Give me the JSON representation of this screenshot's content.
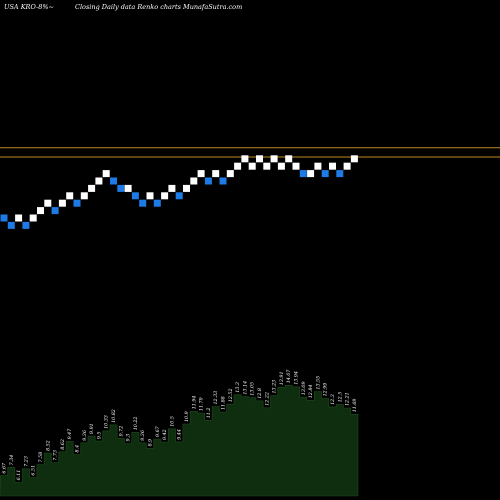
{
  "header": {
    "ticker_label": "USA KRO-8%~",
    "title": "Closing Daily data  Renko  charts MunafaSutra.com"
  },
  "colors": {
    "background": "#000000",
    "brick_up": "#ffffff",
    "brick_down": "#1e7be6",
    "level_line": "#c08a1e",
    "volume_fill": "#0f2e0f",
    "volume_edge": "#1c4a1c",
    "volume_label": "#ffffff"
  },
  "chart_data": [
    {
      "type": "renko",
      "x_axis": "brick index",
      "y_axis": "price level (brick steps)",
      "grid": false,
      "bricks": [
        {
          "i": 0,
          "level": 4,
          "dir": "down"
        },
        {
          "i": 1,
          "level": 3,
          "dir": "down"
        },
        {
          "i": 2,
          "level": 4,
          "dir": "up"
        },
        {
          "i": 3,
          "level": 3,
          "dir": "down"
        },
        {
          "i": 4,
          "level": 4,
          "dir": "up"
        },
        {
          "i": 5,
          "level": 5,
          "dir": "up"
        },
        {
          "i": 6,
          "level": 6,
          "dir": "up"
        },
        {
          "i": 7,
          "level": 5,
          "dir": "down"
        },
        {
          "i": 8,
          "level": 6,
          "dir": "up"
        },
        {
          "i": 9,
          "level": 7,
          "dir": "up"
        },
        {
          "i": 10,
          "level": 6,
          "dir": "down"
        },
        {
          "i": 11,
          "level": 7,
          "dir": "up"
        },
        {
          "i": 12,
          "level": 8,
          "dir": "up"
        },
        {
          "i": 13,
          "level": 9,
          "dir": "up"
        },
        {
          "i": 14,
          "level": 10,
          "dir": "up"
        },
        {
          "i": 15,
          "level": 9,
          "dir": "down"
        },
        {
          "i": 16,
          "level": 8,
          "dir": "down"
        },
        {
          "i": 17,
          "level": 8,
          "dir": "up"
        },
        {
          "i": 18,
          "level": 7,
          "dir": "down"
        },
        {
          "i": 19,
          "level": 6,
          "dir": "down"
        },
        {
          "i": 20,
          "level": 7,
          "dir": "up"
        },
        {
          "i": 21,
          "level": 6,
          "dir": "down"
        },
        {
          "i": 22,
          "level": 7,
          "dir": "up"
        },
        {
          "i": 23,
          "level": 8,
          "dir": "up"
        },
        {
          "i": 24,
          "level": 7,
          "dir": "down"
        },
        {
          "i": 25,
          "level": 8,
          "dir": "up"
        },
        {
          "i": 26,
          "level": 9,
          "dir": "up"
        },
        {
          "i": 27,
          "level": 10,
          "dir": "up"
        },
        {
          "i": 28,
          "level": 9,
          "dir": "down"
        },
        {
          "i": 29,
          "level": 10,
          "dir": "up"
        },
        {
          "i": 30,
          "level": 9,
          "dir": "down"
        },
        {
          "i": 31,
          "level": 10,
          "dir": "up"
        },
        {
          "i": 32,
          "level": 11,
          "dir": "up"
        },
        {
          "i": 33,
          "level": 12,
          "dir": "up"
        },
        {
          "i": 34,
          "level": 11,
          "dir": "up"
        },
        {
          "i": 35,
          "level": 12,
          "dir": "up"
        },
        {
          "i": 36,
          "level": 11,
          "dir": "up"
        },
        {
          "i": 37,
          "level": 12,
          "dir": "up"
        },
        {
          "i": 38,
          "level": 11,
          "dir": "up"
        },
        {
          "i": 39,
          "level": 12,
          "dir": "up"
        },
        {
          "i": 40,
          "level": 11,
          "dir": "up"
        },
        {
          "i": 41,
          "level": 10,
          "dir": "down"
        },
        {
          "i": 42,
          "level": 10,
          "dir": "up"
        },
        {
          "i": 43,
          "level": 11,
          "dir": "up"
        },
        {
          "i": 44,
          "level": 10,
          "dir": "down"
        },
        {
          "i": 45,
          "level": 11,
          "dir": "up"
        },
        {
          "i": 46,
          "level": 10,
          "dir": "down"
        },
        {
          "i": 47,
          "level": 11,
          "dir": "up"
        },
        {
          "i": 48,
          "level": 12,
          "dir": "up"
        }
      ],
      "levels": [
        13.5,
        12.25
      ]
    },
    {
      "type": "area",
      "series": [
        {
          "values": [
            6.67,
            7.34,
            6.11,
            7.23,
            6.51,
            7.58,
            8.52,
            7.73,
            8.62,
            9.47,
            8.4,
            9.36,
            9.91,
            9.5,
            10.33,
            10.82,
            9.72,
            9.3,
            10.22,
            9.36,
            8.9,
            9.67,
            9.42,
            10.5,
            9.44,
            10.9,
            11.94,
            11.79,
            11.2,
            12.33,
            11.88,
            12.52,
            13.3,
            13.14,
            13.05,
            12.8,
            12.22,
            13.23,
            13.91,
            14.07,
            13.94,
            13.09,
            12.84,
            13.55,
            12.99,
            12.3,
            12.5,
            12.21,
            11.69
          ],
          "labels": [
            "6.67",
            "7.34",
            "6.11",
            "7.23",
            "6.51",
            "7.58",
            "8.52",
            "7.73",
            "8.62",
            "9.47",
            "8.4",
            "9.36",
            "9.91",
            "9.5",
            "10.33",
            "10.82",
            "9.72",
            "9.3",
            "10.22",
            "9.36",
            "8.9",
            "9.67",
            "9.42",
            "10.5",
            "9.44",
            "10.9",
            "11.94",
            "11.79",
            "11.2",
            "12.33",
            "11.88",
            "12.52",
            "13.3",
            "13.14",
            "13.05",
            "12.8",
            "12.22",
            "13.23",
            "13.91",
            "14.07",
            "13.94",
            "13.09",
            "12.84",
            "13.55",
            "12.99",
            "12.3",
            "12.5",
            "12.21",
            "11.69"
          ]
        }
      ],
      "ylim": [
        5,
        14.5
      ]
    }
  ]
}
